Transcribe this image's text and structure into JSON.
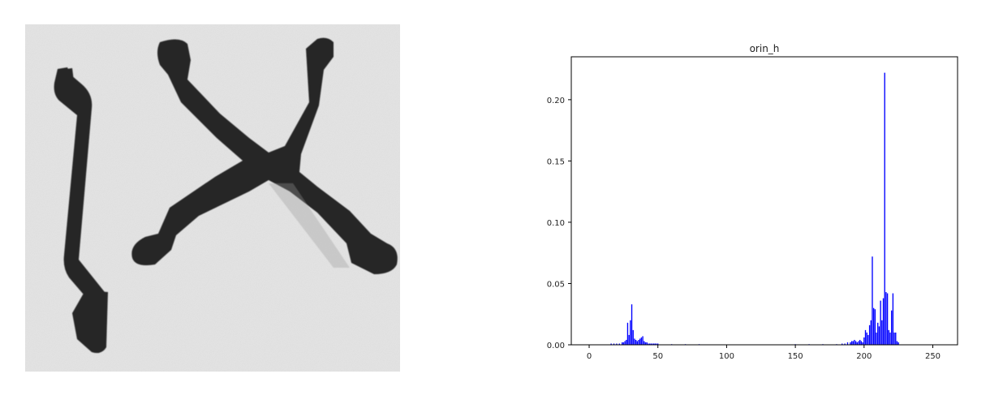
{
  "photo": {
    "subject": "grayscale-photo-of-dark-objects",
    "colors": {
      "background": "#e3e3e3",
      "object": "#262626"
    }
  },
  "chart_data": {
    "type": "bar",
    "title": "orin_h",
    "xlabel": "",
    "ylabel": "",
    "xlim": [
      -13,
      268
    ],
    "ylim": [
      0,
      0.235
    ],
    "xticks": [
      0,
      50,
      100,
      150,
      200,
      250
    ],
    "xtick_labels": [
      "0",
      "50",
      "100",
      "150",
      "200",
      "250"
    ],
    "yticks": [
      0.0,
      0.05,
      0.1,
      0.15,
      0.2
    ],
    "ytick_labels": [
      "0.00",
      "0.05",
      "0.10",
      "0.15",
      "0.20"
    ],
    "grid": false,
    "bar_color": "#0000ff",
    "x": [
      16,
      18,
      20,
      22,
      24,
      25,
      26,
      27,
      28,
      29,
      30,
      31,
      32,
      33,
      34,
      35,
      36,
      37,
      38,
      39,
      40,
      41,
      42,
      43,
      44,
      45,
      46,
      47,
      48,
      49,
      50,
      60,
      70,
      80,
      150,
      160,
      170,
      180,
      184,
      186,
      188,
      190,
      191,
      192,
      193,
      194,
      195,
      196,
      197,
      198,
      199,
      200,
      201,
      202,
      203,
      204,
      205,
      206,
      207,
      208,
      209,
      210,
      211,
      212,
      213,
      214,
      215,
      216,
      217,
      218,
      219,
      220,
      221,
      222,
      223,
      224,
      225
    ],
    "values": [
      0.001,
      0.001,
      0.001,
      0.001,
      0.002,
      0.002,
      0.003,
      0.004,
      0.018,
      0.008,
      0.02,
      0.033,
      0.012,
      0.005,
      0.004,
      0.003,
      0.004,
      0.005,
      0.006,
      0.007,
      0.003,
      0.002,
      0.002,
      0.001,
      0.001,
      0.001,
      0.001,
      0.001,
      0.001,
      0.001,
      0.001,
      0.0005,
      0.0005,
      0.0005,
      0.0005,
      0.0005,
      0.0005,
      0.0005,
      0.001,
      0.001,
      0.002,
      0.002,
      0.003,
      0.003,
      0.004,
      0.003,
      0.002,
      0.003,
      0.004,
      0.003,
      0.002,
      0.006,
      0.012,
      0.01,
      0.008,
      0.016,
      0.02,
      0.072,
      0.03,
      0.029,
      0.01,
      0.018,
      0.015,
      0.036,
      0.02,
      0.038,
      0.222,
      0.043,
      0.042,
      0.012,
      0.01,
      0.028,
      0.042,
      0.01,
      0.01,
      0.003,
      0.002
    ]
  }
}
